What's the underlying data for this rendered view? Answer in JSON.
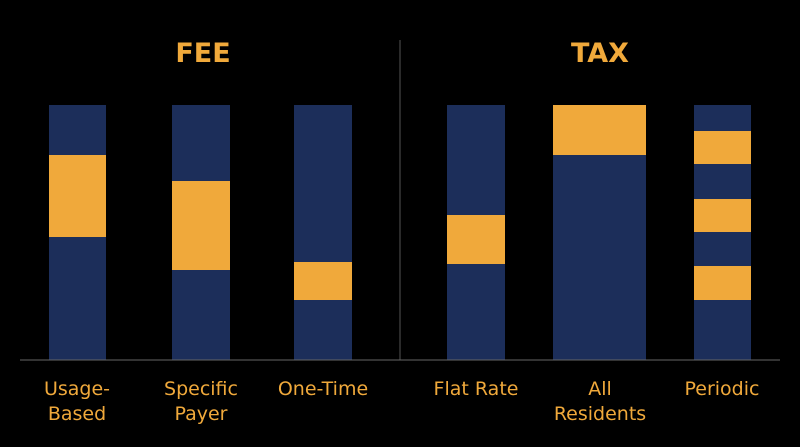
{
  "sections": [
    {
      "title": "FEE",
      "items": [
        {
          "label": [
            "Usage-",
            "Based"
          ]
        },
        {
          "label": [
            "Specific",
            "Payer"
          ]
        },
        {
          "label": [
            "One-Time"
          ]
        }
      ]
    },
    {
      "title": "TAX",
      "items": [
        {
          "label": [
            "Flat Rate"
          ]
        },
        {
          "label": [
            "All",
            "Residents"
          ]
        },
        {
          "label": [
            "Periodic"
          ]
        }
      ]
    }
  ]
}
